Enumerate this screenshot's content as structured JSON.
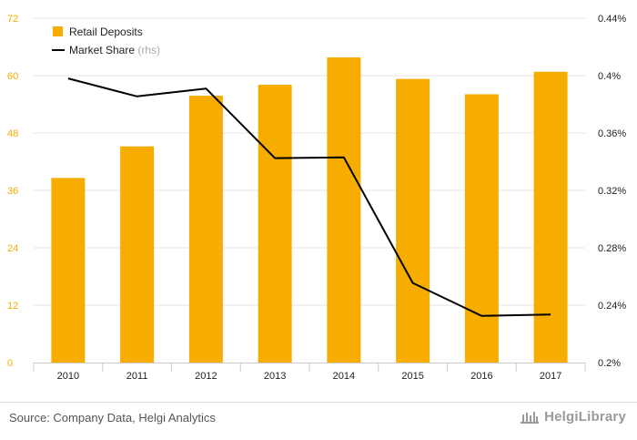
{
  "chart_data": {
    "type": "bar",
    "categories": [
      "2010",
      "2011",
      "2012",
      "2013",
      "2014",
      "2015",
      "2016",
      "2017"
    ],
    "series": [
      {
        "name": "Retail Deposits",
        "type": "bar",
        "axis": "left",
        "color": "#f6ad00",
        "values": [
          38.6,
          45.2,
          55.8,
          58.1,
          63.8,
          59.3,
          56.1,
          60.8
        ]
      },
      {
        "name": "Market Share",
        "type": "line",
        "axis": "right",
        "color": "#000000",
        "values": [
          0.398,
          0.3855,
          0.391,
          0.3425,
          0.343,
          0.2555,
          0.2325,
          0.2335
        ]
      }
    ],
    "legend": {
      "items": [
        {
          "label": "Retail Deposits",
          "suffix": "",
          "color": "#f6ad00",
          "marker": "square"
        },
        {
          "label": "Market Share",
          "suffix": "(rhs)",
          "color": "#000000",
          "marker": "line"
        }
      ],
      "placement": "top-left"
    },
    "y_left": {
      "ylim": [
        0,
        72
      ],
      "ticks": [
        0,
        12,
        24,
        36,
        48,
        60,
        72
      ],
      "tick_labels": [
        "0",
        "12",
        "24",
        "36",
        "48",
        "60",
        "72"
      ],
      "label_color": "#f6ad00"
    },
    "y_right": {
      "ylim": [
        0.2,
        0.44
      ],
      "ticks": [
        0.2,
        0.24,
        0.28,
        0.32,
        0.36,
        0.4,
        0.44
      ],
      "tick_labels": [
        "0.2%",
        "0.24%",
        "0.28%",
        "0.32%",
        "0.36%",
        "0.4%",
        "0.44%"
      ]
    },
    "grid": true
  },
  "footer": {
    "source": "Source: Company Data, Helgi Analytics",
    "brand": "HelgiLibrary"
  },
  "colors": {
    "bar": "#f6ad00",
    "line": "#000000",
    "grid": "#e6e6e6"
  },
  "icons": {
    "brand": "library-building-icon"
  }
}
